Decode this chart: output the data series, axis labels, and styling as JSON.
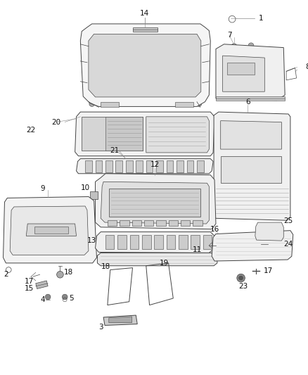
{
  "background_color": "#ffffff",
  "line_color": "#444444",
  "label_color": "#111111",
  "fig_width": 4.38,
  "fig_height": 5.33,
  "dpi": 100
}
